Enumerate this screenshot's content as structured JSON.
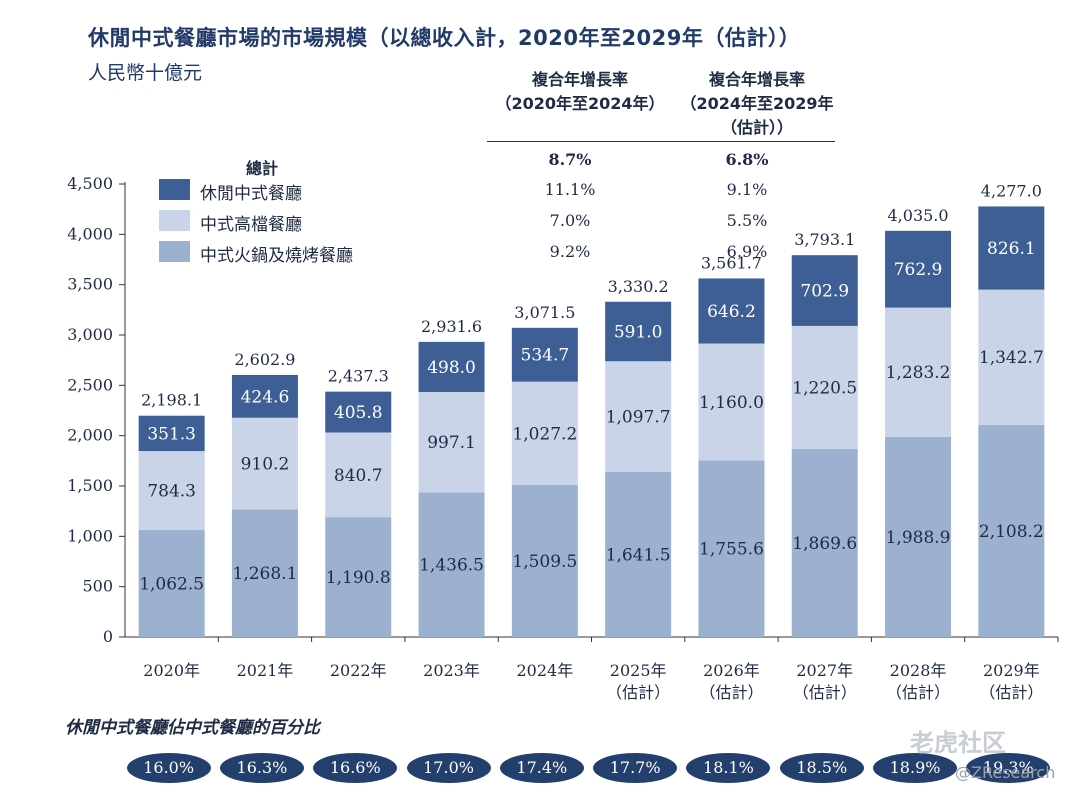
{
  "title": "休閒中式餐廳市場的市場規模（以總收入計，2020年至2029年（估計））",
  "unit": "人民幣十億元",
  "cagr": {
    "headers": [
      [
        "複合年增長率",
        "（2020年至2024年）"
      ],
      [
        "複合年增長率",
        "（2024年至2029年",
        "（估計））"
      ]
    ],
    "total_label": "總計",
    "rows": [
      {
        "label": "總計",
        "a": "8.7%",
        "b": "6.8%"
      },
      {
        "label": "休閒中式餐廳",
        "a": "11.1%",
        "b": "9.1%"
      },
      {
        "label": "中式高檔餐廳",
        "a": "7.0%",
        "b": "5.5%"
      },
      {
        "label": "中式火鍋及燒烤餐廳",
        "a": "9.2%",
        "b": "6.9%"
      }
    ]
  },
  "chart_data": {
    "type": "bar",
    "stacked": true,
    "categories": [
      "2020年",
      "2021年",
      "2022年",
      "2023年",
      "2024年",
      "2025年",
      "2026年",
      "2027年",
      "2028年",
      "2029年"
    ],
    "category_sublabels": [
      "",
      "",
      "",
      "",
      "",
      "（估計）",
      "（估計）",
      "（估計）",
      "（估計）",
      "（估計）"
    ],
    "series": [
      {
        "name": "中式火鍋及燒烤餐廳",
        "color": "#9cb0d0",
        "values": [
          1062.5,
          1268.1,
          1190.8,
          1436.5,
          1509.5,
          1641.5,
          1755.6,
          1869.6,
          1988.9,
          2108.2
        ],
        "labels": [
          "1,062.5",
          "1,268.1",
          "1,190.8",
          "1,436.5",
          "1,509.5",
          "1,641.5",
          "1,755.6",
          "1,869.6",
          "1,988.9",
          "2,108.2"
        ]
      },
      {
        "name": "中式高檔餐廳",
        "color": "#c9d4e8",
        "values": [
          784.3,
          910.2,
          840.7,
          997.1,
          1027.2,
          1097.7,
          1160.0,
          1220.5,
          1283.2,
          1342.7
        ],
        "labels": [
          "784.3",
          "910.2",
          "840.7",
          "997.1",
          "1,027.2",
          "1,097.7",
          "1,160.0",
          "1,220.5",
          "1,283.2",
          "1,342.7"
        ]
      },
      {
        "name": "休閒中式餐廳",
        "color": "#3d5f95",
        "values": [
          351.3,
          424.6,
          405.8,
          498.0,
          534.7,
          591.0,
          646.2,
          702.9,
          762.9,
          826.1
        ],
        "labels": [
          "351.3",
          "424.6",
          "405.8",
          "498.0",
          "534.7",
          "591.0",
          "646.2",
          "702.9",
          "762.9",
          "826.1"
        ]
      }
    ],
    "totals": [
      "2,198.1",
      "2,602.9",
      "2,437.3",
      "2,931.6",
      "3,071.5",
      "3,330.2",
      "3,561.7",
      "3,793.1",
      "4,035.0",
      "4,277.0"
    ],
    "y_ticks": [
      "0",
      "500",
      "1,000",
      "1,500",
      "2,000",
      "2,500",
      "3,000",
      "3,500",
      "4,000",
      "4,500"
    ],
    "ylim": [
      0,
      4500
    ],
    "grid": false,
    "legend_position": "top-left"
  },
  "share": {
    "title": "休閒中式餐廳佔中式餐廳的百分比",
    "values": [
      "16.0%",
      "16.3%",
      "16.6%",
      "17.0%",
      "17.4%",
      "17.7%",
      "18.1%",
      "18.5%",
      "18.9%",
      "19.3%"
    ]
  },
  "watermark": {
    "brand": "老虎社区",
    "handle": "@ZResearch"
  }
}
